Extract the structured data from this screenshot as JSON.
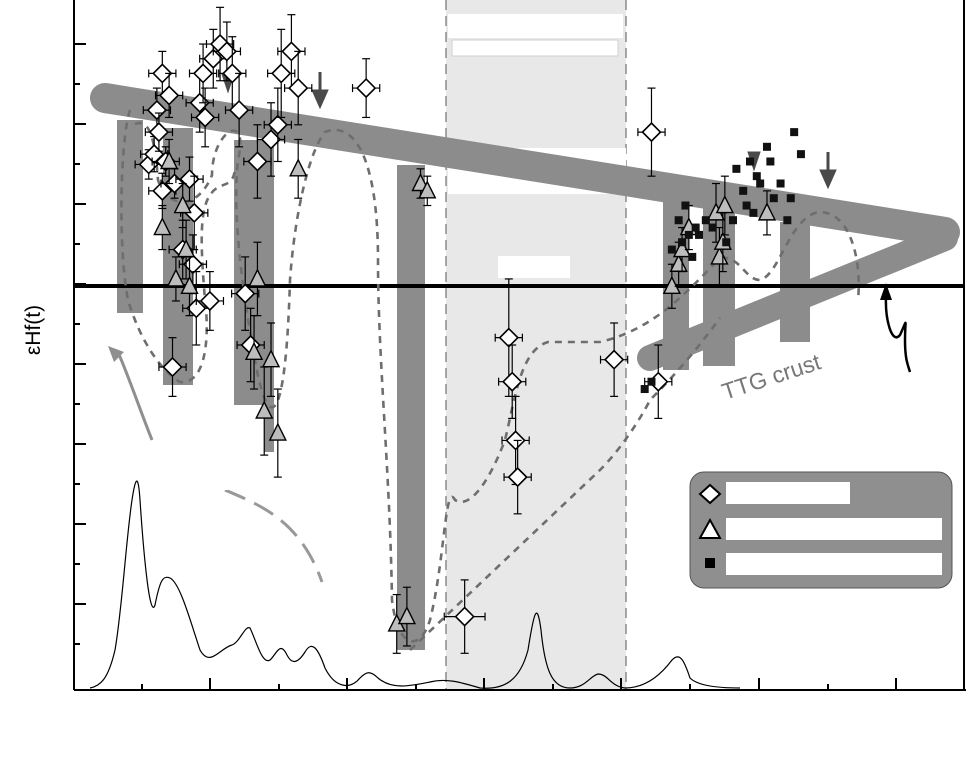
{
  "chart_data": {
    "type": "scatter",
    "title": "",
    "ylabel": "εHf(t)",
    "xlabel": "",
    "annotations": {
      "ttg_crust": "TTG crust"
    },
    "legend": {
      "placement": "bottom-right",
      "entries": [
        {
          "marker": "diamond",
          "label": ""
        },
        {
          "marker": "triangle",
          "label": ""
        },
        {
          "marker": "square",
          "label": ""
        }
      ]
    },
    "series": [
      {
        "marker": "diamond",
        "points": [
          {
            "x": 0.11,
            "y": 2.8,
            "xe": 0.02,
            "ye": 1.0
          },
          {
            "x": 0.118,
            "y": 3.5,
            "xe": 0.02,
            "ye": 1.2
          },
          {
            "x": 0.122,
            "y": 6.5,
            "xe": 0.02,
            "ye": 1.5
          },
          {
            "x": 0.125,
            "y": 5.0,
            "xe": 0.02,
            "ye": 1.3
          },
          {
            "x": 0.13,
            "y": 1.0,
            "xe": 0.02,
            "ye": 1.2
          },
          {
            "x": 0.13,
            "y": 9.0,
            "xe": 0.02,
            "ye": 1.5
          },
          {
            "x": 0.135,
            "y": 3.0,
            "xe": 0.02,
            "ye": 1.0
          },
          {
            "x": 0.14,
            "y": 7.5,
            "xe": 0.02,
            "ye": 1.5
          },
          {
            "x": 0.145,
            "y": -11.0,
            "xe": 0.02,
            "ye": 2.0
          },
          {
            "x": 0.148,
            "y": 1.5,
            "xe": 0.02,
            "ye": 1.0
          },
          {
            "x": 0.16,
            "y": -3.0,
            "xe": 0.02,
            "ye": 2.0
          },
          {
            "x": 0.17,
            "y": 1.8,
            "xe": 0.02,
            "ye": 1.5
          },
          {
            "x": 0.175,
            "y": -4.0,
            "xe": 0.02,
            "ye": 2.0
          },
          {
            "x": 0.177,
            "y": -0.5,
            "xe": 0.02,
            "ye": 2.5
          },
          {
            "x": 0.18,
            "y": -7.0,
            "xe": 0.02,
            "ye": 2.5
          },
          {
            "x": 0.185,
            "y": 7.0,
            "xe": 0.02,
            "ye": 2.0
          },
          {
            "x": 0.19,
            "y": 9.0,
            "xe": 0.02,
            "ye": 2.0
          },
          {
            "x": 0.193,
            "y": 6.0,
            "xe": 0.02,
            "ye": 2.0
          },
          {
            "x": 0.2,
            "y": -6.5,
            "xe": 0.02,
            "ye": 2.0
          },
          {
            "x": 0.205,
            "y": 10.0,
            "xe": 0.02,
            "ye": 2.0
          },
          {
            "x": 0.215,
            "y": 11.0,
            "xe": 0.02,
            "ye": 2.5
          },
          {
            "x": 0.225,
            "y": 10.5,
            "xe": 0.02,
            "ye": 2.0
          },
          {
            "x": 0.233,
            "y": 9.0,
            "xe": 0.02,
            "ye": 2.5
          },
          {
            "x": 0.243,
            "y": 6.5,
            "xe": 0.02,
            "ye": 2.5
          },
          {
            "x": 0.252,
            "y": -6.0,
            "xe": 0.02,
            "ye": 2.5
          },
          {
            "x": 0.26,
            "y": -9.5,
            "xe": 0.02,
            "ye": 2.5
          },
          {
            "x": 0.27,
            "y": 3.0,
            "xe": 0.02,
            "ye": 2.5
          },
          {
            "x": 0.29,
            "y": 4.5,
            "xe": 0.02,
            "ye": 2.5
          },
          {
            "x": 0.3,
            "y": 5.5,
            "xe": 0.02,
            "ye": 2.5
          },
          {
            "x": 0.305,
            "y": 9.0,
            "xe": 0.02,
            "ye": 3.0
          },
          {
            "x": 0.32,
            "y": 10.5,
            "xe": 0.02,
            "ye": 2.5
          },
          {
            "x": 0.33,
            "y": 8.0,
            "xe": 0.02,
            "ye": 2.5
          },
          {
            "x": 0.43,
            "y": 8.0,
            "xe": 0.02,
            "ye": 2.0
          },
          {
            "x": 0.575,
            "y": -28.0,
            "xe": 0.03,
            "ye": 2.5
          },
          {
            "x": 0.64,
            "y": -9.0,
            "xe": 0.02,
            "ye": 4.0
          },
          {
            "x": 0.645,
            "y": -12.0,
            "xe": 0.02,
            "ye": 2.5
          },
          {
            "x": 0.65,
            "y": -16.0,
            "xe": 0.02,
            "ye": 3.0
          },
          {
            "x": 0.653,
            "y": -18.5,
            "xe": 0.02,
            "ye": 2.5
          },
          {
            "x": 0.795,
            "y": -10.5,
            "xe": 0.02,
            "ye": 2.5
          },
          {
            "x": 0.85,
            "y": 5.0,
            "xe": 0.02,
            "ye": 3.0
          },
          {
            "x": 0.86,
            "y": -12.0,
            "xe": 0.02,
            "ye": 2.5
          }
        ]
      },
      {
        "marker": "triangle",
        "points": [
          {
            "x": 0.13,
            "y": -1.5,
            "ye": 1.5
          },
          {
            "x": 0.14,
            "y": 3.0,
            "ye": 1.5
          },
          {
            "x": 0.15,
            "y": -5.0,
            "ye": 1.5
          },
          {
            "x": 0.16,
            "y": 0.0,
            "ye": 1.5
          },
          {
            "x": 0.165,
            "y": -3.0,
            "ye": 2.0
          },
          {
            "x": 0.17,
            "y": -5.5,
            "ye": 2.0
          },
          {
            "x": 0.265,
            "y": -10.0,
            "ye": 2.5
          },
          {
            "x": 0.27,
            "y": -5.0,
            "ye": 2.5
          },
          {
            "x": 0.28,
            "y": -14.0,
            "ye": 3.0
          },
          {
            "x": 0.29,
            "y": -10.5,
            "ye": 2.5
          },
          {
            "x": 0.3,
            "y": -15.5,
            "ye": 3.0
          },
          {
            "x": 0.33,
            "y": 2.5,
            "ye": 2.0
          },
          {
            "x": 0.475,
            "y": -28.5,
            "ye": 2.0
          },
          {
            "x": 0.49,
            "y": -28.0,
            "ye": 2.0
          },
          {
            "x": 0.51,
            "y": 1.5,
            "ye": 1.0
          },
          {
            "x": 0.52,
            "y": 1.0,
            "ye": 1.0
          },
          {
            "x": 0.88,
            "y": -5.5,
            "ye": 1.5
          },
          {
            "x": 0.89,
            "y": -4.0,
            "ye": 1.5
          },
          {
            "x": 0.895,
            "y": -3.0,
            "ye": 1.5
          },
          {
            "x": 0.905,
            "y": -1.5,
            "ye": 1.5
          },
          {
            "x": 0.945,
            "y": -0.5,
            "ye": 2.0
          },
          {
            "x": 0.95,
            "y": -3.5,
            "ye": 2.0
          },
          {
            "x": 0.955,
            "y": -2.5,
            "ye": 2.0
          },
          {
            "x": 0.958,
            "y": 0.0,
            "ye": 2.0
          },
          {
            "x": 1.02,
            "y": -0.5,
            "ye": 1.5
          }
        ]
      },
      {
        "marker": "square",
        "points": [
          {
            "x": 0.88,
            "y": -3.0
          },
          {
            "x": 0.89,
            "y": -1.0
          },
          {
            "x": 0.895,
            "y": -2.5
          },
          {
            "x": 0.9,
            "y": 0.0
          },
          {
            "x": 0.905,
            "y": -2.0
          },
          {
            "x": 0.91,
            "y": -3.5
          },
          {
            "x": 0.915,
            "y": -1.5
          },
          {
            "x": 0.92,
            "y": -2.0
          },
          {
            "x": 0.93,
            "y": -1.0
          },
          {
            "x": 0.94,
            "y": -1.5
          },
          {
            "x": 0.96,
            "y": -2.5
          },
          {
            "x": 0.97,
            "y": -1.0
          },
          {
            "x": 0.975,
            "y": 2.5
          },
          {
            "x": 0.985,
            "y": 1.0
          },
          {
            "x": 0.99,
            "y": 0.0
          },
          {
            "x": 0.995,
            "y": 3.0
          },
          {
            "x": 1.0,
            "y": -0.5
          },
          {
            "x": 1.005,
            "y": 2.0
          },
          {
            "x": 1.01,
            "y": 1.5
          },
          {
            "x": 1.02,
            "y": 4.0
          },
          {
            "x": 1.025,
            "y": 3.0
          },
          {
            "x": 1.03,
            "y": 0.5
          },
          {
            "x": 1.04,
            "y": 1.5
          },
          {
            "x": 1.05,
            "y": -1.0
          },
          {
            "x": 1.055,
            "y": 0.5
          },
          {
            "x": 1.06,
            "y": 5.0
          },
          {
            "x": 1.07,
            "y": 3.5
          },
          {
            "x": 0.84,
            "y": -12.5
          },
          {
            "x": 0.85,
            "y": -12.0
          }
        ]
      }
    ],
    "xlim": [
      0,
      1.31
    ],
    "ylim": [
      -33,
      14
    ],
    "zero_line": 0,
    "colors": {
      "band": "#8c8c8c",
      "shade": "#e8e8e8",
      "dash": "#6e6e6e",
      "legend_bg": "#8f8f8f",
      "curve": "#000000"
    }
  }
}
